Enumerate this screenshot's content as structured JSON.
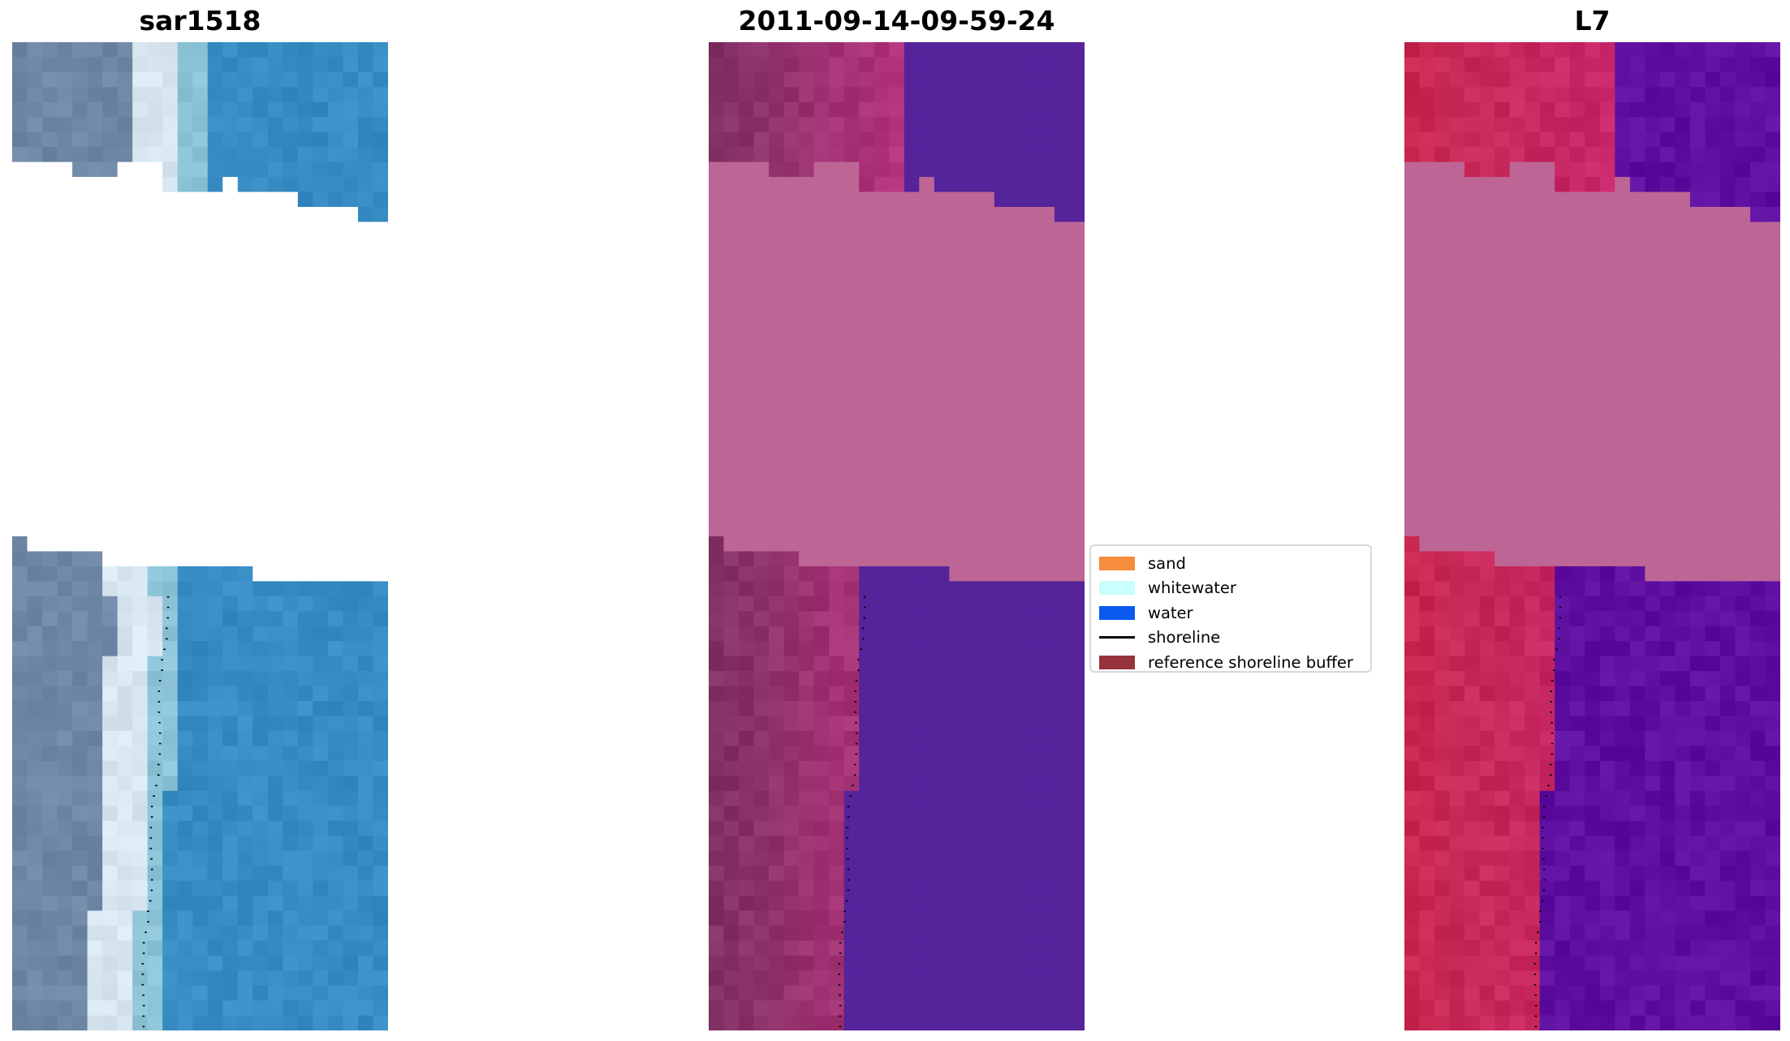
{
  "panels": [
    {
      "title": "sar1518",
      "kind": "rgb"
    },
    {
      "title": "2011-09-14-09-59-24",
      "kind": "classified"
    },
    {
      "title": "L7",
      "kind": "mndwi"
    }
  ],
  "legend": {
    "items": [
      {
        "label": "sand",
        "color": "#f78c3c",
        "type": "patch"
      },
      {
        "label": "whitewater",
        "color": "#c8ffff",
        "type": "patch"
      },
      {
        "label": "water",
        "color": "#0a5af0",
        "type": "patch"
      },
      {
        "label": "shoreline",
        "color": "#000000",
        "type": "line"
      },
      {
        "label": "reference shoreline buffer",
        "color": "#96323c",
        "type": "patch"
      }
    ]
  },
  "colors": {
    "nodata_rgb": "#ffffff",
    "nodata_classified": "#bd6696",
    "nodata_mndwi": "#bd6696",
    "classified_water": "#55239a",
    "mndwi_water": "#6010a0",
    "mndwi_land": "#c8204c",
    "shoreline_points": "#000000"
  }
}
